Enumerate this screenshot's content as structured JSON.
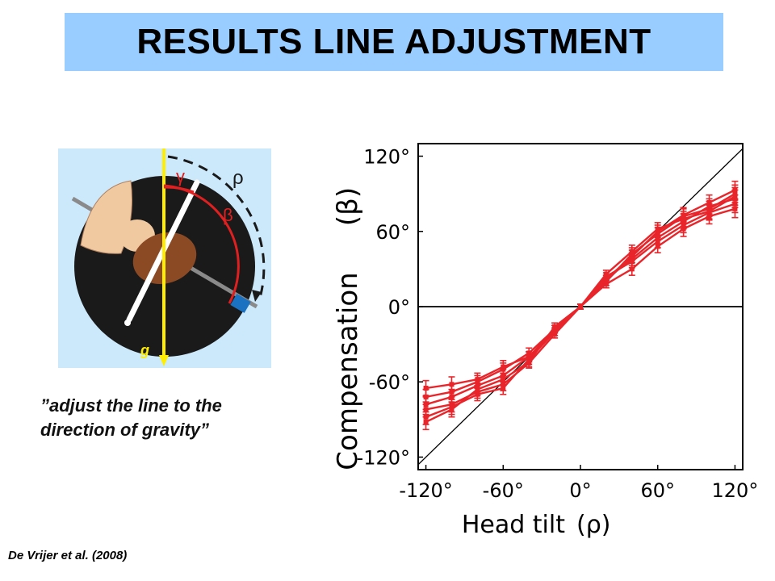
{
  "title": "RESULTS LINE ADJUSTMENT",
  "illustration": {
    "labels": {
      "gamma": "γ",
      "rho": "ρ",
      "beta": "β",
      "gravity": "g"
    },
    "colors": {
      "background": "#cce9fb",
      "disk": "#1a1a1a",
      "head": "#8b4a24",
      "body": "#f1c9a0",
      "gravity_line": "#ffee00",
      "arc": "#e02020",
      "marker": "#1a72c0"
    }
  },
  "quote": {
    "line1": "”adjust the line to the",
    "line2": "direction of gravity”"
  },
  "citation": "De Vrijer et al. (2008)",
  "chart_data": {
    "type": "line",
    "xlabel": "Head tilt",
    "xlabel_symbol": "(ρ)",
    "ylabel": "Compensation",
    "ylabel_symbol": "(β)",
    "xlim": [
      -126,
      126
    ],
    "ylim": [
      -130,
      130
    ],
    "x_ticks": [
      -120,
      -60,
      0,
      60,
      120
    ],
    "y_ticks": [
      -120,
      -60,
      0,
      60,
      120
    ],
    "x_tick_labels": [
      "-120°",
      "-60°",
      "0°",
      "60°",
      "120°"
    ],
    "y_tick_labels": [
      "-120°",
      "-60°",
      "0°",
      "60°",
      "120°"
    ],
    "reference_lines": [
      "identity (y = x)",
      "horizontal at 0"
    ],
    "series_color": "#e8252a",
    "x": [
      -120,
      -100,
      -80,
      -60,
      -40,
      -20,
      0,
      20,
      40,
      60,
      80,
      100,
      120
    ],
    "series": [
      {
        "values": [
          -65,
          -62,
          -58,
          -48,
          -40,
          -20,
          0,
          22,
          40,
          60,
          73,
          83,
          93
        ]
      },
      {
        "values": [
          -72,
          -68,
          -60,
          -50,
          -37,
          -18,
          0,
          20,
          42,
          58,
          72,
          78,
          90
        ]
      },
      {
        "values": [
          -78,
          -72,
          -63,
          -55,
          -40,
          -18,
          0,
          24,
          36,
          52,
          65,
          75,
          82
        ]
      },
      {
        "values": [
          -82,
          -78,
          -68,
          -62,
          -45,
          -22,
          0,
          18,
          30,
          48,
          62,
          72,
          78
        ]
      },
      {
        "values": [
          -88,
          -80,
          -70,
          -65,
          -42,
          -20,
          0,
          22,
          38,
          55,
          68,
          80,
          86
        ]
      },
      {
        "values": [
          -92,
          -82,
          -66,
          -58,
          -44,
          -16,
          0,
          26,
          44,
          62,
          70,
          76,
          88
        ]
      }
    ],
    "error": [
      6,
      6,
      5,
      5,
      4,
      3,
      2,
      3,
      5,
      5,
      6,
      6,
      7
    ]
  }
}
